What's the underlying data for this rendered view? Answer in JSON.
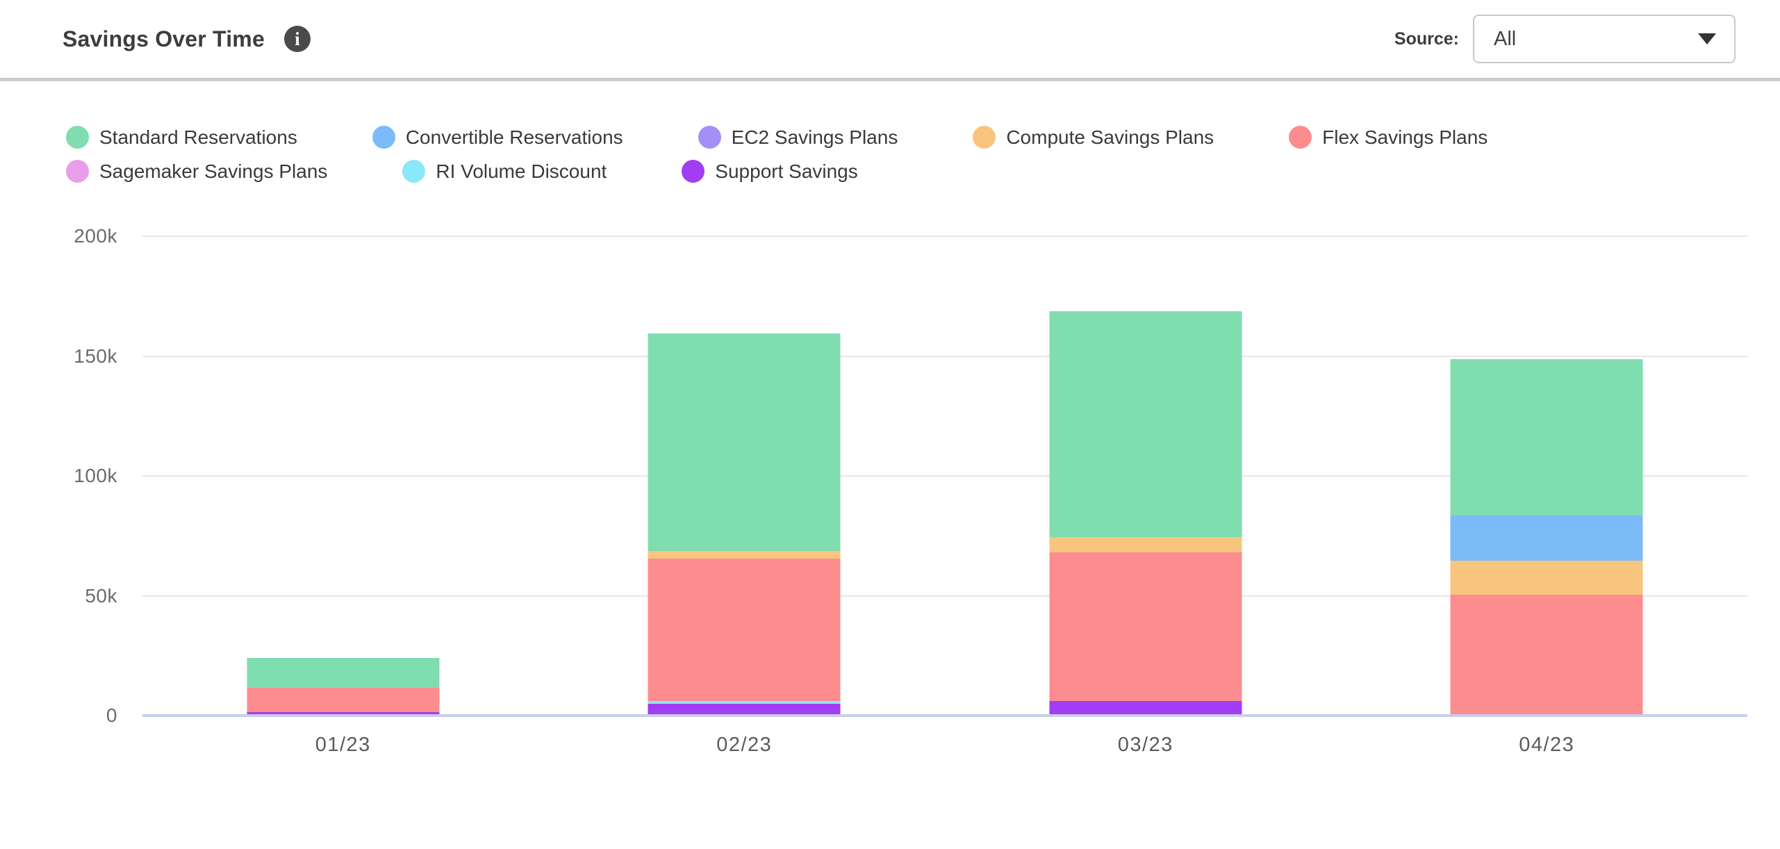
{
  "header": {
    "title": "Savings Over Time",
    "info_icon": "info-circle-icon",
    "source_label": "Source:",
    "source_value": "All"
  },
  "chart_data": {
    "type": "bar",
    "stacked": true,
    "title": "Savings Over Time",
    "categories": [
      "01/23",
      "02/23",
      "03/23",
      "04/23"
    ],
    "yticks_top_to_bottom": [
      "200k",
      "150k",
      "100k",
      "50k",
      "0"
    ],
    "ylim_k": [
      0,
      200
    ],
    "values_unit": "thousands (k)",
    "grid": "horizontal",
    "legend_position": "top-left, two rows",
    "series": [
      {
        "name": "Standard Reservations",
        "color": "#7FDDB0",
        "values": [
          12.5,
          91,
          94,
          65
        ]
      },
      {
        "name": "Convertible Reservations",
        "color": "#7DBAF8",
        "values": [
          0,
          0,
          0,
          19
        ]
      },
      {
        "name": "EC2 Savings Plans",
        "color": "#A48FF8",
        "values": [
          0,
          0,
          0,
          0
        ]
      },
      {
        "name": "Compute Savings Plans",
        "color": "#F7C57E",
        "values": [
          0,
          3,
          6.5,
          14
        ]
      },
      {
        "name": "Flex Savings Plans",
        "color": "#FC8C8E",
        "values": [
          10,
          59.5,
          62,
          50
        ]
      },
      {
        "name": "Sagemaker Savings Plans",
        "color": "#EA9DE9",
        "values": [
          0,
          0,
          0,
          0
        ]
      },
      {
        "name": "RI Volume Discount",
        "color": "#8AE8F8",
        "values": [
          0,
          1,
          0,
          0
        ]
      },
      {
        "name": "Support Savings",
        "color": "#A13DF2",
        "values": [
          1,
          4.5,
          5.5,
          0
        ]
      }
    ],
    "stack_order_bottom_to_top": [
      "Support Savings",
      "RI Volume Discount",
      "Sagemaker Savings Plans",
      "Flex Savings Plans",
      "Compute Savings Plans",
      "EC2 Savings Plans",
      "Convertible Reservations",
      "Standard Reservations"
    ],
    "legend_rows": [
      [
        0,
        1,
        2,
        3,
        4
      ],
      [
        5,
        6,
        7
      ]
    ]
  },
  "colors": {
    "axis_line": "#C9CFEC",
    "gridline": "#E7E7E7",
    "axis_text": "#6B6B6B",
    "legend_text": "#3A3A3A",
    "title_text": "#3D3D3D",
    "divider": "#CBCBCB",
    "info_icon_bg": "#4A4A4A"
  }
}
